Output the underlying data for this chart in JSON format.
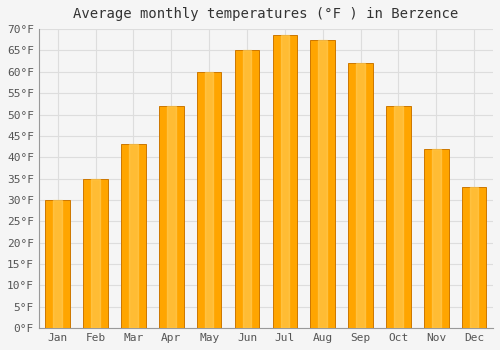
{
  "title": "Average monthly temperatures (°F ) in Berzence",
  "months": [
    "Jan",
    "Feb",
    "Mar",
    "Apr",
    "May",
    "Jun",
    "Jul",
    "Aug",
    "Sep",
    "Oct",
    "Nov",
    "Dec"
  ],
  "values": [
    30,
    35,
    43,
    52,
    60,
    65,
    68.5,
    67.5,
    62,
    52,
    42,
    33
  ],
  "bar_color": "#FFA500",
  "bar_edge_color": "#CC7700",
  "background_color": "#F5F5F5",
  "plot_bg_color": "#F5F5F5",
  "grid_color": "#DDDDDD",
  "ylim": [
    0,
    70
  ],
  "yticks": [
    0,
    5,
    10,
    15,
    20,
    25,
    30,
    35,
    40,
    45,
    50,
    55,
    60,
    65,
    70
  ],
  "title_fontsize": 10,
  "tick_fontsize": 8,
  "title_font": "monospace",
  "tick_font": "monospace",
  "bar_width": 0.65
}
